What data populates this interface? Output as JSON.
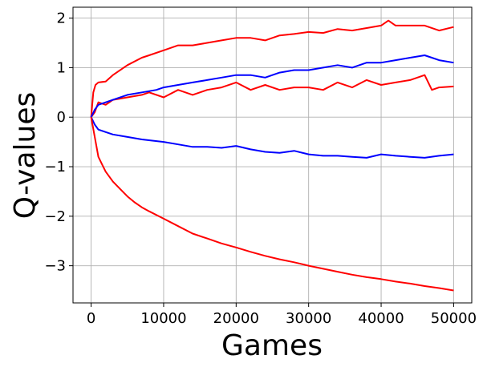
{
  "chart_data": {
    "type": "line",
    "title": "",
    "xlabel": "Games",
    "ylabel": "Q-values",
    "xlim": [
      -2500,
      52500
    ],
    "ylim": [
      -3.75,
      2.22
    ],
    "xticks": [
      0,
      10000,
      20000,
      30000,
      40000,
      50000
    ],
    "xtick_labels": [
      "0",
      "10000",
      "20000",
      "30000",
      "40000",
      "50000"
    ],
    "yticks": [
      -3,
      -2,
      -1,
      0,
      1,
      2
    ],
    "ytick_labels": [
      "−3",
      "−2",
      "−1",
      "0",
      "1",
      "2"
    ],
    "grid": true,
    "legend": null,
    "series": [
      {
        "color": "#ff0000",
        "x": [
          0,
          300,
          600,
          1000,
          2000,
          3000,
          5000,
          7000,
          8000,
          10000,
          12000,
          14000,
          16000,
          18000,
          20000,
          22000,
          24000,
          26000,
          28000,
          30000,
          32000,
          34000,
          36000,
          38000,
          40000,
          41000,
          42000,
          44000,
          46000,
          48000,
          50000
        ],
        "y": [
          0,
          0.5,
          0.65,
          0.7,
          0.72,
          0.85,
          1.05,
          1.2,
          1.25,
          1.35,
          1.45,
          1.45,
          1.5,
          1.55,
          1.6,
          1.6,
          1.55,
          1.65,
          1.68,
          1.72,
          1.7,
          1.78,
          1.75,
          1.8,
          1.85,
          1.95,
          1.85,
          1.85,
          1.85,
          1.75,
          1.82
        ]
      },
      {
        "color": "#ff0000",
        "x": [
          0,
          500,
          1000,
          2000,
          3000,
          5000,
          7000,
          8000,
          10000,
          12000,
          14000,
          16000,
          18000,
          20000,
          22000,
          24000,
          26000,
          28000,
          30000,
          32000,
          34000,
          36000,
          38000,
          40000,
          42000,
          44000,
          46000,
          47000,
          48000,
          50000
        ],
        "y": [
          0,
          0.1,
          0.3,
          0.25,
          0.35,
          0.4,
          0.45,
          0.5,
          0.4,
          0.55,
          0.45,
          0.55,
          0.6,
          0.7,
          0.55,
          0.65,
          0.55,
          0.6,
          0.6,
          0.55,
          0.7,
          0.6,
          0.75,
          0.65,
          0.7,
          0.75,
          0.85,
          0.55,
          0.6,
          0.62
        ]
      },
      {
        "color": "#0000ff",
        "x": [
          0,
          500,
          1000,
          2000,
          3000,
          5000,
          7000,
          9000,
          10000,
          12000,
          14000,
          16000,
          18000,
          20000,
          22000,
          24000,
          26000,
          28000,
          30000,
          32000,
          34000,
          36000,
          38000,
          40000,
          42000,
          44000,
          46000,
          47000,
          48000,
          50000
        ],
        "y": [
          0,
          0.15,
          0.25,
          0.3,
          0.35,
          0.45,
          0.5,
          0.55,
          0.6,
          0.65,
          0.7,
          0.75,
          0.8,
          0.85,
          0.85,
          0.8,
          0.9,
          0.95,
          0.95,
          1.0,
          1.05,
          1.0,
          1.1,
          1.1,
          1.15,
          1.2,
          1.25,
          1.2,
          1.15,
          1.1
        ]
      },
      {
        "color": "#0000ff",
        "x": [
          0,
          500,
          1000,
          2000,
          3000,
          5000,
          7000,
          10000,
          12000,
          14000,
          16000,
          18000,
          20000,
          22000,
          24000,
          26000,
          28000,
          30000,
          32000,
          34000,
          36000,
          38000,
          40000,
          42000,
          44000,
          46000,
          48000,
          50000
        ],
        "y": [
          0,
          -0.15,
          -0.25,
          -0.3,
          -0.35,
          -0.4,
          -0.45,
          -0.5,
          -0.55,
          -0.6,
          -0.6,
          -0.62,
          -0.58,
          -0.65,
          -0.7,
          -0.72,
          -0.68,
          -0.75,
          -0.78,
          -0.78,
          -0.8,
          -0.82,
          -0.75,
          -0.78,
          -0.8,
          -0.82,
          -0.78,
          -0.75
        ]
      },
      {
        "color": "#ff0000",
        "x": [
          0,
          500,
          1000,
          1500,
          2000,
          3000,
          4000,
          5000,
          6000,
          7000,
          8000,
          10000,
          12000,
          14000,
          16000,
          18000,
          20000,
          22000,
          24000,
          26000,
          28000,
          30000,
          32000,
          34000,
          36000,
          38000,
          40000,
          42000,
          44000,
          46000,
          48000,
          50000
        ],
        "y": [
          0,
          -0.4,
          -0.8,
          -0.95,
          -1.1,
          -1.3,
          -1.45,
          -1.6,
          -1.72,
          -1.82,
          -1.9,
          -2.05,
          -2.2,
          -2.35,
          -2.45,
          -2.55,
          -2.63,
          -2.72,
          -2.8,
          -2.87,
          -2.93,
          -3.0,
          -3.06,
          -3.12,
          -3.18,
          -3.23,
          -3.27,
          -3.32,
          -3.36,
          -3.41,
          -3.45,
          -3.5
        ]
      }
    ]
  }
}
